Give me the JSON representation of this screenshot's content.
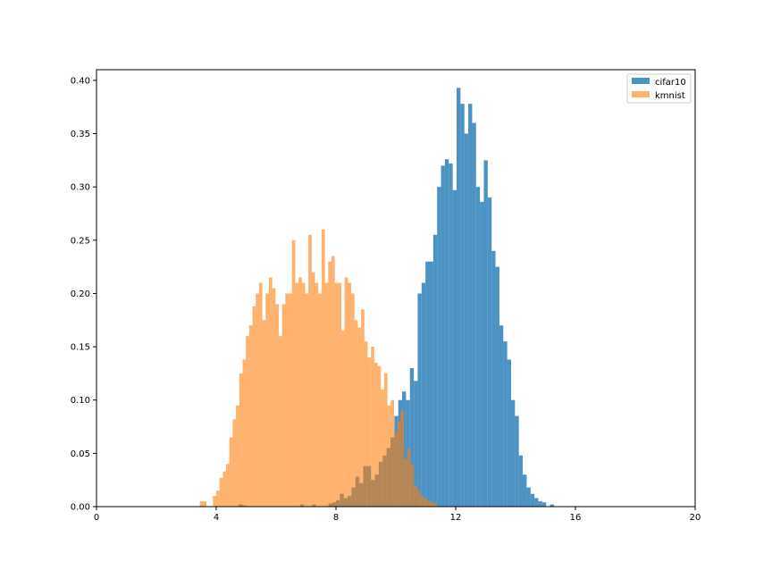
{
  "chart_data": {
    "type": "bar",
    "title": "",
    "xlabel": "",
    "ylabel": "",
    "xlim": [
      0,
      20
    ],
    "ylim": [
      0,
      0.41
    ],
    "xticks": [
      0,
      4,
      8,
      12,
      16,
      20
    ],
    "yticks": [
      0.0,
      0.05,
      0.1,
      0.15,
      0.2,
      0.25,
      0.3,
      0.35,
      0.4
    ],
    "grid": false,
    "legend_position": "top-right",
    "series": [
      {
        "name": "cifar10",
        "color": "#1f77b4",
        "opacity": 0.8,
        "bin_width": 0.13,
        "bins": [
          [
            4.75,
            0.002
          ],
          [
            4.88,
            0.001
          ],
          [
            6.8,
            0.002
          ],
          [
            7.2,
            0.002
          ],
          [
            7.75,
            0.003
          ],
          [
            7.88,
            0.004
          ],
          [
            8.0,
            0.006
          ],
          [
            8.13,
            0.012
          ],
          [
            8.26,
            0.008
          ],
          [
            8.39,
            0.01
          ],
          [
            8.52,
            0.018
          ],
          [
            8.65,
            0.028
          ],
          [
            8.78,
            0.022
          ],
          [
            8.91,
            0.038
          ],
          [
            9.04,
            0.038
          ],
          [
            9.17,
            0.025
          ],
          [
            9.3,
            0.03
          ],
          [
            9.43,
            0.042
          ],
          [
            9.56,
            0.048
          ],
          [
            9.69,
            0.055
          ],
          [
            9.82,
            0.065
          ],
          [
            9.95,
            0.085
          ],
          [
            10.08,
            0.1
          ],
          [
            10.21,
            0.108
          ],
          [
            10.34,
            0.1
          ],
          [
            10.47,
            0.13
          ],
          [
            10.6,
            0.118
          ],
          [
            10.73,
            0.2
          ],
          [
            10.86,
            0.21
          ],
          [
            10.99,
            0.23
          ],
          [
            11.12,
            0.23
          ],
          [
            11.25,
            0.255
          ],
          [
            11.38,
            0.3
          ],
          [
            11.51,
            0.32
          ],
          [
            11.64,
            0.326
          ],
          [
            11.77,
            0.322
          ],
          [
            11.9,
            0.297
          ],
          [
            12.03,
            0.393
          ],
          [
            12.16,
            0.378
          ],
          [
            12.29,
            0.35
          ],
          [
            12.42,
            0.378
          ],
          [
            12.55,
            0.36
          ],
          [
            12.68,
            0.3
          ],
          [
            12.81,
            0.286
          ],
          [
            12.94,
            0.325
          ],
          [
            13.07,
            0.29
          ],
          [
            13.2,
            0.24
          ],
          [
            13.33,
            0.225
          ],
          [
            13.46,
            0.17
          ],
          [
            13.59,
            0.155
          ],
          [
            13.72,
            0.138
          ],
          [
            13.85,
            0.1
          ],
          [
            13.98,
            0.085
          ],
          [
            14.11,
            0.048
          ],
          [
            14.24,
            0.03
          ],
          [
            14.37,
            0.018
          ],
          [
            14.5,
            0.012
          ],
          [
            14.63,
            0.008
          ],
          [
            14.76,
            0.005
          ],
          [
            14.89,
            0.004
          ],
          [
            15.15,
            0.002
          ]
        ]
      },
      {
        "name": "kmnist",
        "color": "#ff7f0e",
        "opacity": 0.6,
        "bin_width": 0.11,
        "bins": [
          [
            3.45,
            0.005
          ],
          [
            3.56,
            0.005
          ],
          [
            3.67,
            0.0
          ],
          [
            3.78,
            0.0
          ],
          [
            3.89,
            0.01
          ],
          [
            4.0,
            0.015
          ],
          [
            4.11,
            0.027
          ],
          [
            4.22,
            0.033
          ],
          [
            4.33,
            0.04
          ],
          [
            4.44,
            0.065
          ],
          [
            4.55,
            0.082
          ],
          [
            4.66,
            0.095
          ],
          [
            4.77,
            0.125
          ],
          [
            4.88,
            0.138
          ],
          [
            4.99,
            0.16
          ],
          [
            5.1,
            0.17
          ],
          [
            5.21,
            0.188
          ],
          [
            5.32,
            0.2
          ],
          [
            5.43,
            0.21
          ],
          [
            5.54,
            0.175
          ],
          [
            5.65,
            0.2
          ],
          [
            5.76,
            0.215
          ],
          [
            5.87,
            0.205
          ],
          [
            5.98,
            0.19
          ],
          [
            6.09,
            0.16
          ],
          [
            6.2,
            0.19
          ],
          [
            6.31,
            0.2
          ],
          [
            6.42,
            0.2
          ],
          [
            6.53,
            0.25
          ],
          [
            6.64,
            0.21
          ],
          [
            6.75,
            0.215
          ],
          [
            6.86,
            0.21
          ],
          [
            6.97,
            0.2
          ],
          [
            7.08,
            0.255
          ],
          [
            7.19,
            0.22
          ],
          [
            7.3,
            0.21
          ],
          [
            7.41,
            0.2
          ],
          [
            7.52,
            0.26
          ],
          [
            7.63,
            0.21
          ],
          [
            7.74,
            0.23
          ],
          [
            7.85,
            0.235
          ],
          [
            7.96,
            0.21
          ],
          [
            8.07,
            0.21
          ],
          [
            8.18,
            0.165
          ],
          [
            8.29,
            0.215
          ],
          [
            8.4,
            0.21
          ],
          [
            8.51,
            0.2
          ],
          [
            8.62,
            0.175
          ],
          [
            8.73,
            0.168
          ],
          [
            8.84,
            0.185
          ],
          [
            8.95,
            0.155
          ],
          [
            9.06,
            0.14
          ],
          [
            9.17,
            0.15
          ],
          [
            9.28,
            0.135
          ],
          [
            9.39,
            0.132
          ],
          [
            9.5,
            0.11
          ],
          [
            9.61,
            0.125
          ],
          [
            9.72,
            0.095
          ],
          [
            9.83,
            0.1
          ],
          [
            9.94,
            0.07
          ],
          [
            10.05,
            0.08
          ],
          [
            10.16,
            0.09
          ],
          [
            10.27,
            0.045
          ],
          [
            10.38,
            0.055
          ],
          [
            10.49,
            0.04
          ],
          [
            10.6,
            0.02
          ],
          [
            10.71,
            0.015
          ],
          [
            10.82,
            0.01
          ],
          [
            10.93,
            0.008
          ],
          [
            11.04,
            0.005
          ],
          [
            11.15,
            0.004
          ],
          [
            11.26,
            0.003
          ]
        ]
      }
    ]
  }
}
